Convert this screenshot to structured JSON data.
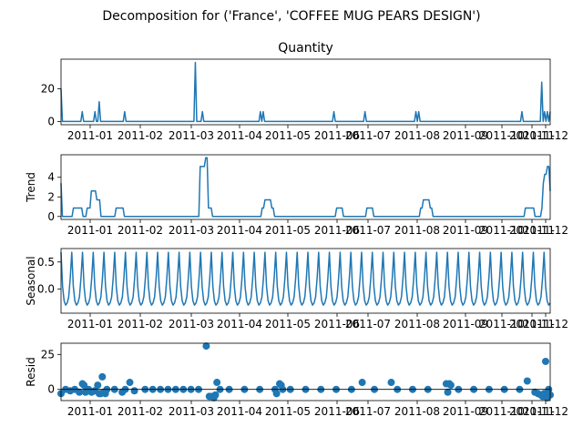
{
  "figure": {
    "title": "Decomposition for ('France', 'COFFEE MUG PEARS  DESIGN')"
  },
  "colors": {
    "series": "#1f77b4",
    "axis": "#000000"
  },
  "x_tick_labels": [
    "2011-01",
    "2011-02",
    "2011-03",
    "2011-04",
    "2011-05",
    "2011-06",
    "2011-07",
    "2011-08",
    "2011-09",
    "2011-10",
    "2011-11",
    "2011-12"
  ],
  "chart_data": [
    {
      "type": "line",
      "title": "Quantity",
      "ylabel": "",
      "ylim": [
        -2,
        38
      ],
      "yticks": [
        0,
        20
      ],
      "values": [
        20,
        0,
        0,
        0,
        0,
        0,
        0,
        0,
        0,
        0,
        0,
        0,
        0,
        0,
        0,
        6,
        0,
        0,
        0,
        0,
        0,
        0,
        0,
        0,
        6,
        0,
        0,
        12,
        0,
        0,
        0,
        0,
        0,
        0,
        0,
        0,
        0,
        0,
        0,
        0,
        0,
        0,
        0,
        0,
        0,
        6,
        0,
        0,
        0,
        0,
        0,
        0,
        0,
        0,
        0,
        0,
        0,
        0,
        0,
        0,
        0,
        0,
        0,
        0,
        0,
        0,
        0,
        0,
        0,
        0,
        0,
        0,
        0,
        0,
        0,
        0,
        0,
        0,
        0,
        0,
        0,
        0,
        0,
        0,
        0,
        0,
        0,
        0,
        0,
        0,
        0,
        0,
        0,
        0,
        0,
        36,
        0,
        0,
        0,
        0,
        6,
        0,
        0,
        0,
        0,
        0,
        0,
        0,
        0,
        0,
        0,
        0,
        0,
        0,
        0,
        0,
        0,
        0,
        0,
        0,
        0,
        0,
        0,
        0,
        0,
        0,
        0,
        0,
        0,
        0,
        0,
        0,
        0,
        0,
        0,
        0,
        0,
        0,
        0,
        0,
        0,
        6,
        0,
        6,
        0,
        0,
        0,
        0,
        0,
        0,
        0,
        0,
        0,
        0,
        0,
        0,
        0,
        0,
        0,
        0,
        0,
        0,
        0,
        0,
        0,
        0,
        0,
        0,
        0,
        0,
        0,
        0,
        0,
        0,
        0,
        0,
        0,
        0,
        0,
        0,
        0,
        0,
        0,
        0,
        0,
        0,
        0,
        0,
        0,
        0,
        0,
        0,
        0,
        6,
        0,
        0,
        0,
        0,
        0,
        0,
        0,
        0,
        0,
        0,
        0,
        0,
        0,
        0,
        0,
        0,
        0,
        0,
        0,
        0,
        0,
        6,
        0,
        0,
        0,
        0,
        0,
        0,
        0,
        0,
        0,
        0,
        0,
        0,
        0,
        0,
        0,
        0,
        0,
        0,
        0,
        0,
        0,
        0,
        0,
        0,
        0,
        0,
        0,
        0,
        0,
        0,
        0,
        0,
        0,
        0,
        0,
        6,
        0,
        6,
        0,
        0,
        0,
        0,
        0,
        0,
        0,
        0,
        0,
        0,
        0,
        0,
        0,
        0,
        0,
        0,
        0,
        0,
        0,
        0,
        0,
        0,
        0,
        0,
        0,
        0,
        0,
        0,
        0,
        0,
        0,
        0,
        0,
        0,
        0,
        0,
        0,
        0,
        0,
        0,
        0,
        0,
        0,
        0,
        0,
        0,
        0,
        0,
        0,
        0,
        0,
        0,
        0,
        0,
        0,
        0,
        0,
        0,
        0,
        0,
        0,
        0,
        0,
        0,
        0,
        0,
        0,
        0,
        0,
        0,
        0,
        0,
        6,
        0,
        0,
        0,
        0,
        0,
        0,
        0,
        0,
        0,
        0,
        0,
        0,
        0,
        24,
        0,
        6,
        0,
        6,
        0,
        6
      ]
    },
    {
      "type": "line",
      "title": "",
      "ylabel": "Trend",
      "ylim": [
        -0.3,
        6.3
      ],
      "yticks": [
        0,
        2,
        4
      ],
      "values": [
        3.4,
        0,
        0,
        0,
        0,
        0,
        0,
        0,
        0,
        0.86,
        0.86,
        0.86,
        0.86,
        0.86,
        0.86,
        0.86,
        0,
        0,
        0,
        0.86,
        0.86,
        0.86,
        2.6,
        2.6,
        2.6,
        2.6,
        1.7,
        1.7,
        1.7,
        0,
        0,
        0,
        0,
        0,
        0,
        0,
        0,
        0,
        0,
        0,
        0.86,
        0.86,
        0.86,
        0.86,
        0.86,
        0.86,
        0,
        0,
        0,
        0,
        0,
        0,
        0,
        0,
        0,
        0,
        0,
        0,
        0,
        0,
        0,
        0,
        0,
        0,
        0,
        0,
        0,
        0,
        0,
        0,
        0,
        0,
        0,
        0,
        0,
        0,
        0,
        0,
        0,
        0,
        0,
        0,
        0,
        0,
        0,
        0,
        0,
        0,
        0,
        0,
        0,
        0,
        0,
        0,
        0,
        0,
        0,
        0,
        0,
        0,
        0,
        5.1,
        5.1,
        5.1,
        5.1,
        6,
        6,
        0.86,
        0.86,
        0.86,
        0,
        0,
        0,
        0,
        0,
        0,
        0,
        0,
        0,
        0,
        0,
        0,
        0,
        0,
        0,
        0,
        0,
        0,
        0,
        0,
        0,
        0,
        0,
        0,
        0,
        0,
        0,
        0,
        0,
        0,
        0,
        0,
        0,
        0,
        0,
        0,
        0.86,
        0.86,
        1.7,
        1.7,
        1.7,
        1.7,
        1.7,
        0.86,
        0.86,
        0,
        0,
        0,
        0,
        0,
        0,
        0,
        0,
        0,
        0,
        0,
        0,
        0,
        0,
        0,
        0,
        0,
        0,
        0,
        0,
        0,
        0,
        0,
        0,
        0,
        0,
        0,
        0,
        0,
        0,
        0,
        0,
        0,
        0,
        0,
        0,
        0,
        0,
        0,
        0,
        0,
        0,
        0,
        0,
        0,
        0.86,
        0.86,
        0.86,
        0.86,
        0.86,
        0,
        0,
        0,
        0,
        0,
        0,
        0,
        0,
        0,
        0,
        0,
        0,
        0,
        0,
        0,
        0,
        0,
        0.86,
        0.86,
        0.86,
        0.86,
        0.86,
        0,
        0,
        0,
        0,
        0,
        0,
        0,
        0,
        0,
        0,
        0,
        0,
        0,
        0,
        0,
        0,
        0,
        0,
        0,
        0,
        0,
        0,
        0,
        0,
        0,
        0,
        0,
        0,
        0,
        0,
        0,
        0,
        0,
        0,
        0.86,
        0.86,
        1.7,
        1.7,
        1.7,
        1.7,
        1.7,
        0.86,
        0.86,
        0,
        0,
        0,
        0,
        0,
        0,
        0,
        0,
        0,
        0,
        0,
        0,
        0,
        0,
        0,
        0,
        0,
        0,
        0,
        0,
        0,
        0,
        0,
        0,
        0,
        0,
        0,
        0,
        0,
        0,
        0,
        0,
        0,
        0,
        0,
        0,
        0,
        0,
        0,
        0,
        0,
        0,
        0,
        0,
        0,
        0,
        0,
        0,
        0,
        0,
        0,
        0,
        0,
        0,
        0,
        0,
        0,
        0,
        0,
        0,
        0,
        0,
        0,
        0,
        0,
        0,
        0,
        0.86,
        0.86,
        0.86,
        0.86,
        0.86,
        0.86,
        0.86,
        0,
        0,
        0,
        0,
        0,
        0.86,
        3.4,
        4.3,
        4.3,
        5.1,
        5.1,
        2.6
      ]
    },
    {
      "type": "line",
      "title": "",
      "ylabel": "Seasonal",
      "ylim": [
        -0.45,
        0.75
      ],
      "yticks": [
        0.0,
        0.5
      ],
      "yticks_format": [
        "0.0",
        "0.5"
      ],
      "pattern": [
        0.68,
        0.05,
        -0.22,
        -0.3,
        -0.26,
        -0.15,
        0.2
      ],
      "n_points": 320
    },
    {
      "type": "scatter",
      "title": "",
      "ylabel": "Resid",
      "ylim": [
        -8,
        33
      ],
      "yticks": [
        0,
        25
      ],
      "points": [
        [
          0,
          -3
        ],
        [
          3,
          0
        ],
        [
          6,
          -1
        ],
        [
          9,
          0
        ],
        [
          12,
          -2
        ],
        [
          14,
          4
        ],
        [
          15,
          3
        ],
        [
          16,
          -2
        ],
        [
          18,
          0
        ],
        [
          20,
          -2
        ],
        [
          22,
          -1
        ],
        [
          24,
          3
        ],
        [
          25,
          -3
        ],
        [
          26,
          -3
        ],
        [
          27,
          9
        ],
        [
          28,
          -2
        ],
        [
          29,
          -3
        ],
        [
          30,
          0
        ],
        [
          35,
          0
        ],
        [
          40,
          -2
        ],
        [
          42,
          0
        ],
        [
          45,
          5
        ],
        [
          48,
          -1
        ],
        [
          55,
          0
        ],
        [
          60,
          0
        ],
        [
          65,
          0
        ],
        [
          70,
          0
        ],
        [
          75,
          0
        ],
        [
          80,
          0
        ],
        [
          85,
          0
        ],
        [
          90,
          0
        ],
        [
          95,
          31
        ],
        [
          97,
          -5
        ],
        [
          99,
          -5
        ],
        [
          100,
          -6
        ],
        [
          101,
          -4
        ],
        [
          102,
          5
        ],
        [
          104,
          0
        ],
        [
          110,
          0
        ],
        [
          120,
          0
        ],
        [
          130,
          0
        ],
        [
          140,
          0
        ],
        [
          141,
          -3
        ],
        [
          143,
          4
        ],
        [
          144,
          3
        ],
        [
          145,
          0
        ],
        [
          150,
          0
        ],
        [
          160,
          0
        ],
        [
          170,
          0
        ],
        [
          180,
          0
        ],
        [
          190,
          0
        ],
        [
          197,
          5
        ],
        [
          205,
          0
        ],
        [
          216,
          5
        ],
        [
          220,
          0
        ],
        [
          230,
          0
        ],
        [
          240,
          0
        ],
        [
          252,
          4
        ],
        [
          253,
          -2
        ],
        [
          254,
          4
        ],
        [
          255,
          3
        ],
        [
          260,
          0
        ],
        [
          270,
          0
        ],
        [
          280,
          0
        ],
        [
          290,
          0
        ],
        [
          300,
          0
        ],
        [
          305,
          6
        ],
        [
          310,
          -2
        ],
        [
          312,
          -3
        ],
        [
          314,
          -4
        ],
        [
          315,
          -5
        ],
        [
          316,
          -3
        ],
        [
          317,
          20
        ],
        [
          318,
          -6
        ],
        [
          319,
          0
        ],
        [
          320,
          -4
        ]
      ]
    }
  ]
}
